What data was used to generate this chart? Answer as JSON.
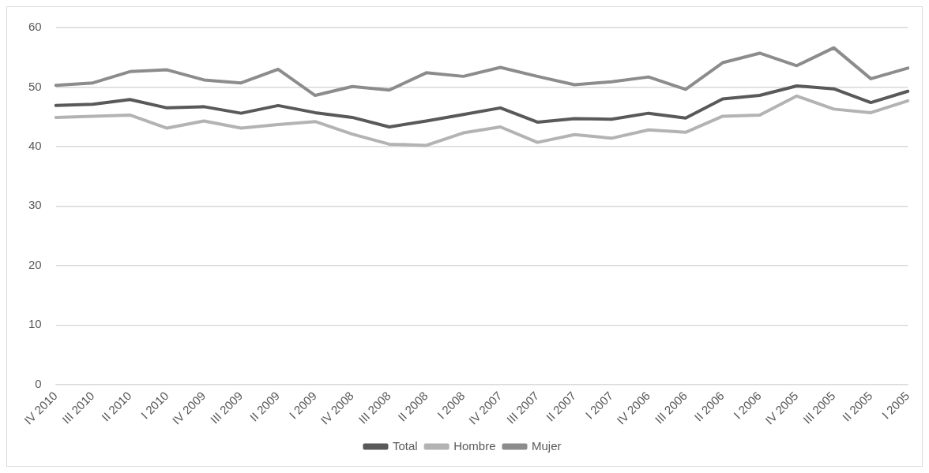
{
  "chart_data": {
    "type": "line",
    "categories": [
      "IV 2010",
      "III 2010",
      "II 2010",
      "I 2010",
      "IV 2009",
      "III 2009",
      "II 2009",
      "I 2009",
      "IV 2008",
      "III 2008",
      "II 2008",
      "I 2008",
      "IV 2007",
      "III 2007",
      "II 2007",
      "I 2007",
      "IV 2006",
      "III 2006",
      "II 2006",
      "I 2006",
      "IV 2005",
      "III 2005",
      "II 2005",
      "I 2005"
    ],
    "series": [
      {
        "name": "Total",
        "color": "#595959",
        "values": [
          46.9,
          47.1,
          47.9,
          46.5,
          46.7,
          45.6,
          46.9,
          45.7,
          44.9,
          43.3,
          44.3,
          45.4,
          46.5,
          44.1,
          44.7,
          44.6,
          45.6,
          44.8,
          48.0,
          48.6,
          50.2,
          49.7,
          47.4,
          49.3
        ]
      },
      {
        "name": "Hombre",
        "color": "#b3b3b3",
        "values": [
          44.9,
          45.1,
          45.3,
          43.1,
          44.3,
          43.1,
          43.7,
          44.2,
          42.1,
          40.4,
          40.2,
          42.3,
          43.3,
          40.7,
          42.0,
          41.4,
          42.8,
          42.4,
          45.1,
          45.3,
          48.5,
          46.3,
          45.7,
          47.7
        ]
      },
      {
        "name": "Mujer",
        "color": "#8c8c8c",
        "values": [
          50.3,
          50.7,
          52.6,
          52.9,
          51.2,
          50.7,
          53.0,
          48.6,
          50.1,
          49.5,
          52.4,
          51.8,
          53.3,
          51.8,
          50.4,
          50.9,
          51.7,
          49.6,
          54.1,
          55.7,
          53.6,
          56.6,
          51.4,
          53.2
        ]
      }
    ],
    "ylim": [
      0,
      60
    ],
    "yticks": [
      0,
      10,
      20,
      30,
      40,
      50,
      60
    ],
    "grid": "y",
    "legend": "bottom",
    "marker": "none",
    "line_style": "solid"
  }
}
